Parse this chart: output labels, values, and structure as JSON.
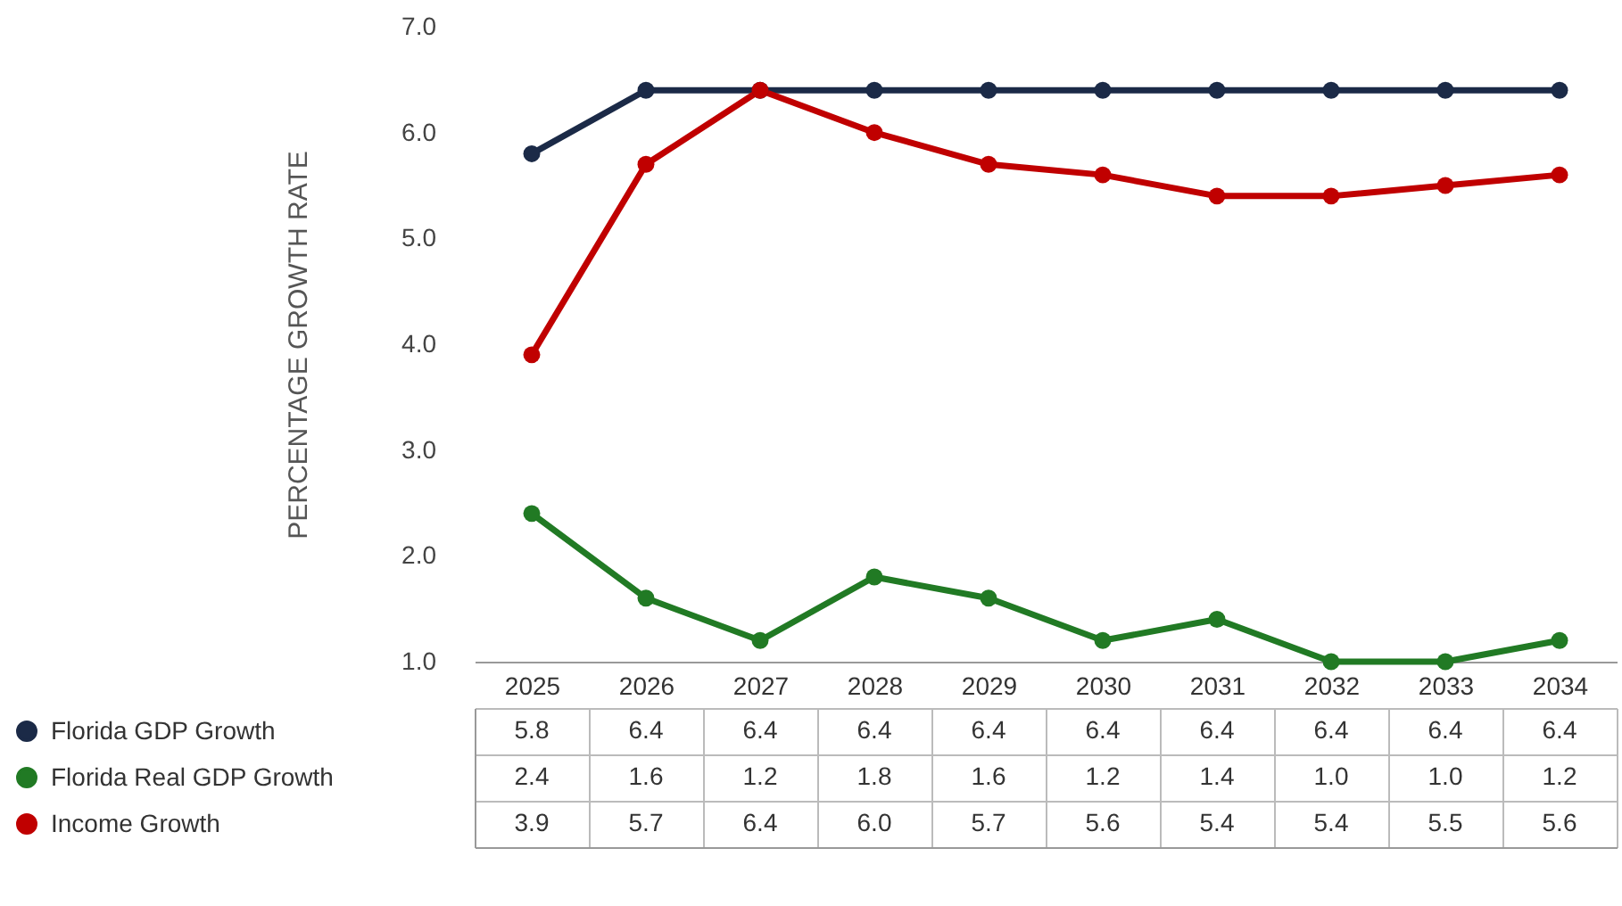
{
  "chart_data": {
    "type": "line",
    "ylabel": "PERCENTAGE GROWTH RATE",
    "categories": [
      "2025",
      "2026",
      "2027",
      "2028",
      "2029",
      "2030",
      "2031",
      "2032",
      "2033",
      "2034"
    ],
    "series": [
      {
        "name": "Florida GDP Growth",
        "color": "#1b2a47",
        "values": [
          5.8,
          6.4,
          6.4,
          6.4,
          6.4,
          6.4,
          6.4,
          6.4,
          6.4,
          6.4
        ],
        "value_labels": [
          "5.8",
          "6.4",
          "6.4",
          "6.4",
          "6.4",
          "6.4",
          "6.4",
          "6.4",
          "6.4",
          "6.4"
        ]
      },
      {
        "name": "Florida Real GDP Growth",
        "color": "#217a24",
        "values": [
          2.4,
          1.6,
          1.2,
          1.8,
          1.6,
          1.2,
          1.4,
          1.0,
          1.0,
          1.2
        ],
        "value_labels": [
          "2.4",
          "1.6",
          "1.2",
          "1.8",
          "1.6",
          "1.2",
          "1.4",
          "1.0",
          "1.0",
          "1.2"
        ]
      },
      {
        "name": "Income Growth",
        "color": "#c00000",
        "values": [
          3.9,
          5.7,
          6.4,
          6.0,
          5.7,
          5.6,
          5.4,
          5.4,
          5.5,
          5.6
        ],
        "value_labels": [
          "3.9",
          "5.7",
          "6.4",
          "6.0",
          "5.7",
          "5.6",
          "5.4",
          "5.4",
          "5.5",
          "5.6"
        ]
      }
    ],
    "ylim": [
      1,
      7
    ],
    "yticks": [
      {
        "value": 1,
        "label": "1.0"
      },
      {
        "value": 2,
        "label": "2.0"
      },
      {
        "value": 3,
        "label": "3.0"
      },
      {
        "value": 4,
        "label": "4.0"
      },
      {
        "value": 5,
        "label": "5.0"
      },
      {
        "value": 6,
        "label": "6.0"
      },
      {
        "value": 7,
        "label": "7.0"
      }
    ],
    "legend": "bottom left",
    "marker": "circle",
    "line_style": "solid"
  }
}
